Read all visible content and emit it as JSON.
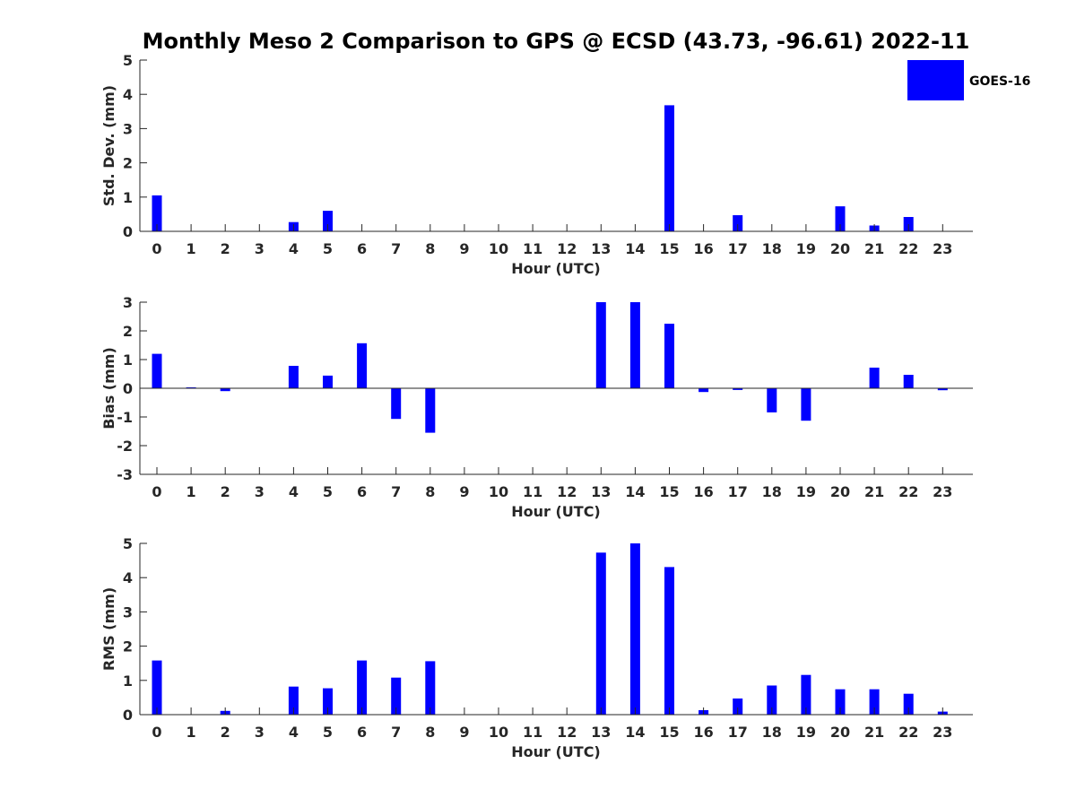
{
  "title": "Monthly Meso 2 Comparison to GPS @ ECSD (43.73, -96.61) 2022-11",
  "legend": {
    "label": "GOES-16",
    "color": "#0000ff",
    "placement": "top-right"
  },
  "chart_data": [
    {
      "type": "bar",
      "xlabel": "Hour (UTC)",
      "ylabel": "Std. Dev. (mm)",
      "ylim": [
        0,
        5
      ],
      "yticks": [
        0,
        1,
        2,
        3,
        4,
        5
      ],
      "categories": [
        "0",
        "1",
        "2",
        "3",
        "4",
        "5",
        "6",
        "7",
        "8",
        "9",
        "10",
        "11",
        "12",
        "13",
        "14",
        "15",
        "16",
        "17",
        "18",
        "19",
        "20",
        "21",
        "22",
        "23"
      ],
      "series": [
        {
          "name": "GOES-16",
          "color": "#0000ff",
          "values": [
            1.05,
            0,
            0,
            0,
            0.27,
            0.6,
            0,
            0,
            0,
            0,
            0,
            0,
            0,
            0,
            0,
            3.68,
            0,
            0.47,
            0,
            0,
            0.73,
            0.17,
            0.42,
            0
          ]
        }
      ]
    },
    {
      "type": "bar",
      "xlabel": "Hour (UTC)",
      "ylabel": "Bias (mm)",
      "ylim": [
        -3,
        3
      ],
      "yticks": [
        -3,
        -2,
        -1,
        0,
        1,
        2,
        3
      ],
      "zero_line": true,
      "categories": [
        "0",
        "1",
        "2",
        "3",
        "4",
        "5",
        "6",
        "7",
        "8",
        "9",
        "10",
        "11",
        "12",
        "13",
        "14",
        "15",
        "16",
        "17",
        "18",
        "19",
        "20",
        "21",
        "22",
        "23"
      ],
      "series": [
        {
          "name": "GOES-16",
          "color": "#0000ff",
          "values": [
            1.2,
            0.03,
            -0.1,
            0,
            0.78,
            0.44,
            1.57,
            -1.07,
            -1.55,
            0,
            0,
            0,
            0,
            3.0,
            3.0,
            2.25,
            -0.13,
            -0.06,
            -0.84,
            -1.13,
            0,
            0.72,
            0.47,
            -0.07
          ]
        }
      ]
    },
    {
      "type": "bar",
      "xlabel": "Hour (UTC)",
      "ylabel": "RMS (mm)",
      "ylim": [
        0,
        5
      ],
      "yticks": [
        0,
        1,
        2,
        3,
        4,
        5
      ],
      "categories": [
        "0",
        "1",
        "2",
        "3",
        "4",
        "5",
        "6",
        "7",
        "8",
        "9",
        "10",
        "11",
        "12",
        "13",
        "14",
        "15",
        "16",
        "17",
        "18",
        "19",
        "20",
        "21",
        "22",
        "23"
      ],
      "series": [
        {
          "name": "GOES-16",
          "color": "#0000ff",
          "values": [
            1.58,
            0,
            0.11,
            0,
            0.82,
            0.77,
            1.58,
            1.08,
            1.56,
            0,
            0,
            0,
            0,
            4.73,
            5.0,
            4.31,
            0.13,
            0.47,
            0.85,
            1.16,
            0.74,
            0.74,
            0.61,
            0.09
          ]
        }
      ]
    }
  ]
}
